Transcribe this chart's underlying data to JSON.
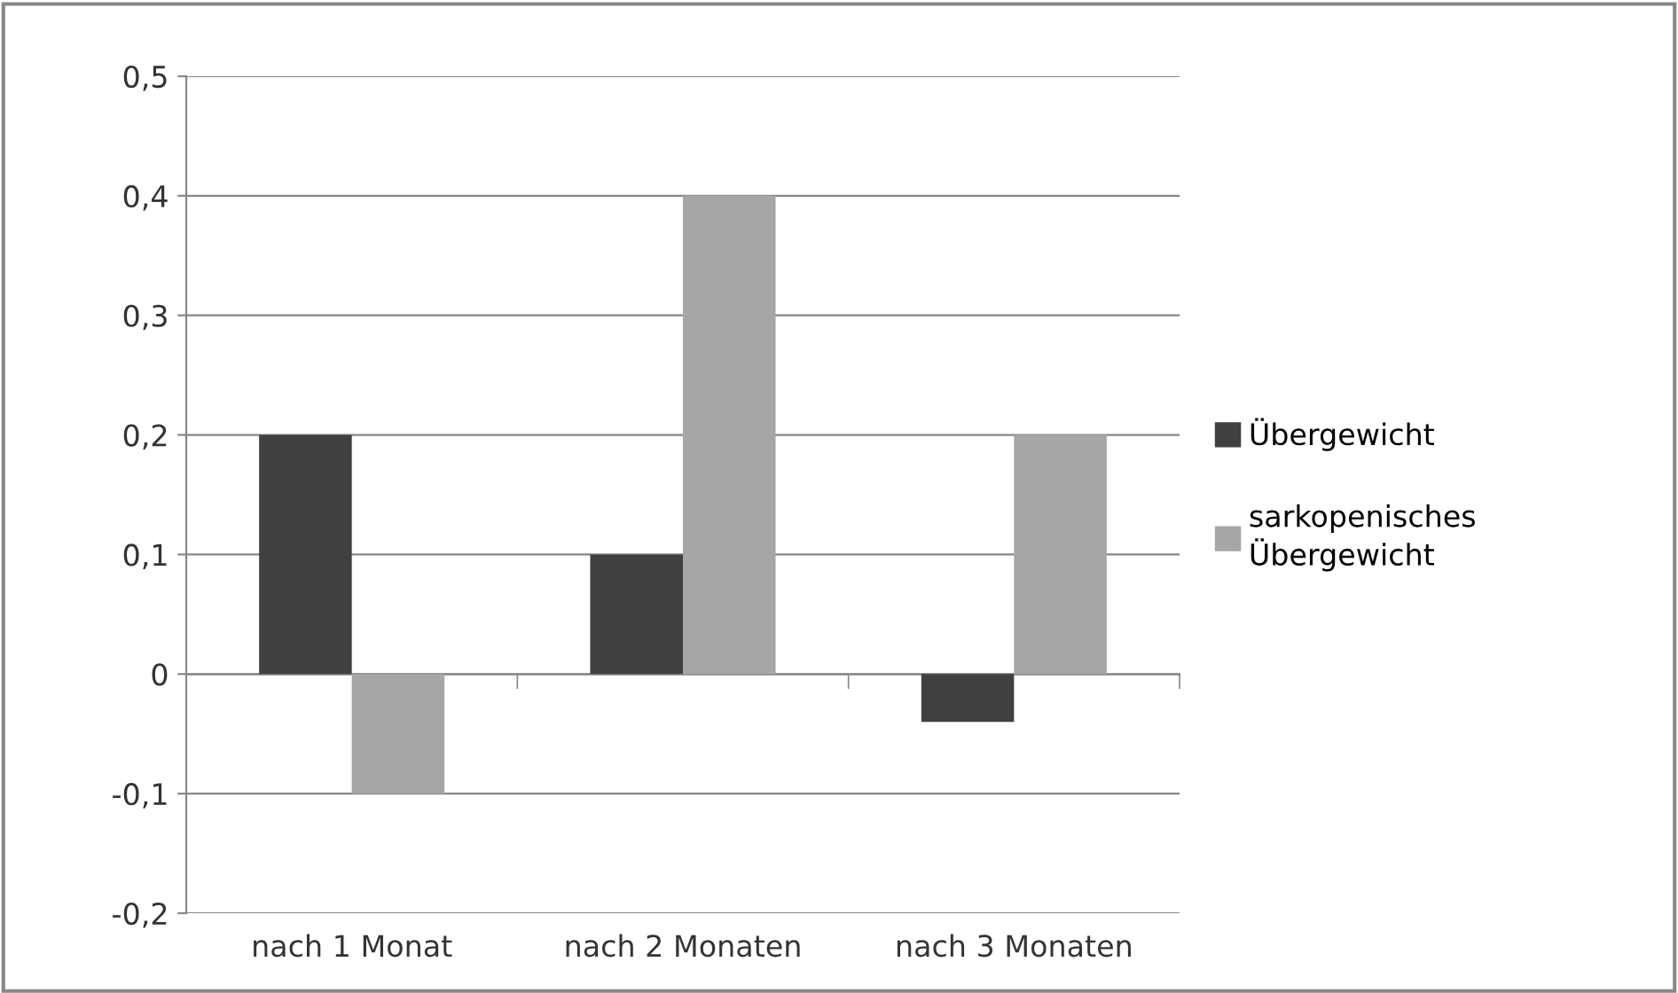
{
  "chart_data": {
    "type": "bar",
    "categories": [
      "nach 1 Monat",
      "nach 2 Monaten",
      "nach 3 Monaten"
    ],
    "series": [
      {
        "name": "Übergewicht",
        "color": "#404040",
        "values": [
          0.2,
          0.1,
          -0.04
        ]
      },
      {
        "name": "sarkopenisches Übergewicht",
        "color": "#a6a6a6",
        "values": [
          -0.1,
          0.4,
          0.2
        ]
      }
    ],
    "ylim": [
      -0.2,
      0.5
    ],
    "yticks": [
      {
        "value": -0.2,
        "label": "-0,2"
      },
      {
        "value": -0.1,
        "label": "-0,1"
      },
      {
        "value": 0,
        "label": "0"
      },
      {
        "value": 0.1,
        "label": "0,1"
      },
      {
        "value": 0.2,
        "label": "0,2"
      },
      {
        "value": 0.3,
        "label": "0,3"
      },
      {
        "value": 0.4,
        "label": "0,4"
      },
      {
        "value": 0.5,
        "label": "0,5"
      }
    ],
    "grid": "y",
    "legend": "right"
  }
}
